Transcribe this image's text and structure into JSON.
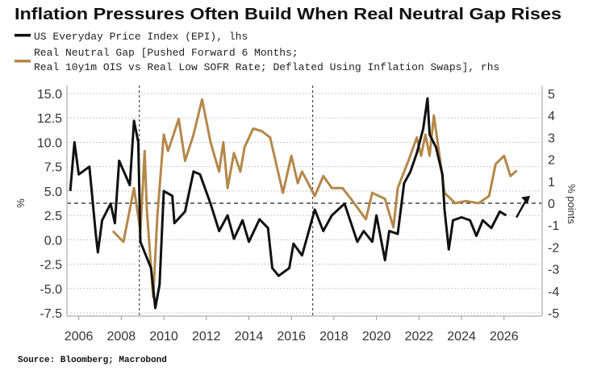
{
  "chart_data": {
    "type": "line",
    "title": "Inflation Pressures Often Build When Real Neutral Gap Rises",
    "legend": [
      {
        "label": "US Everyday Price Index (EPI), lhs",
        "color": "#111111"
      },
      {
        "label_line1": "Real Neutral Gap [Pushed Forward 6 Months;",
        "label_line2": "Real 10y1m OIS vs Real Low SOFR Rate; Deflated Using Inflation Swaps], rhs",
        "color": "#b5874a"
      }
    ],
    "legend_placement": "top-left",
    "ylabel_left": "%",
    "ylabel_right": "% points",
    "source": "Source: Bloomberg; Macrobond",
    "xlim": [
      2005.35,
      2027.7
    ],
    "ylim_left": [
      -7.5,
      15.0
    ],
    "ylim_right": [
      -5,
      5
    ],
    "x_ticks": [
      "2006",
      "2008",
      "2010",
      "2012",
      "2014",
      "2016",
      "2018",
      "2020",
      "2022",
      "2024",
      "2026"
    ],
    "y_ticks_left": [
      "15.0",
      "12.5",
      "10.0",
      "7.5",
      "5.0",
      "2.5",
      "0.0",
      "-2.5",
      "-5.0",
      "-7.5"
    ],
    "y_ticks_right": [
      "5",
      "4",
      "3",
      "2",
      "1",
      "0",
      "-1",
      "-2",
      "-3",
      "-4",
      "-5"
    ],
    "grid": true,
    "zero_line_right": 0,
    "vlines": [
      2008.85,
      2017.0
    ],
    "arrow": {
      "from": [
        2026.58,
        -0.65
      ],
      "to": [
        2027.22,
        0.34
      ]
    },
    "series": [
      {
        "name": "US Everyday Price Index (EPI), lhs",
        "axis": "left",
        "color": "#111111",
        "x": [
          2005.6,
          2005.8,
          2006.0,
          2006.5,
          2006.8,
          2006.9,
          2007.1,
          2007.5,
          2007.7,
          2007.9,
          2008.4,
          2008.6,
          2008.8,
          2008.9,
          2009.4,
          2009.6,
          2009.8,
          2010.0,
          2010.4,
          2010.5,
          2011.0,
          2011.4,
          2011.7,
          2012.2,
          2012.6,
          2013.0,
          2013.3,
          2013.7,
          2014.0,
          2014.5,
          2014.9,
          2015.1,
          2015.4,
          2015.9,
          2016.1,
          2016.5,
          2017.1,
          2017.5,
          2017.9,
          2018.5,
          2019.1,
          2019.4,
          2019.8,
          2020.0,
          2020.4,
          2020.6,
          2021.0,
          2021.3,
          2021.6,
          2021.9,
          2022.2,
          2022.4,
          2022.5,
          2022.8,
          2023.1,
          2023.2,
          2023.4,
          2023.6,
          2024.0,
          2024.4,
          2024.7,
          2025.0,
          2025.4,
          2025.8,
          2026.1
        ],
        "y": [
          5.0,
          10.0,
          6.7,
          7.5,
          0.6,
          -1.3,
          2.0,
          3.7,
          1.7,
          8.1,
          5.6,
          12.2,
          10.0,
          -0.2,
          -2.9,
          -7.0,
          -4.6,
          5.0,
          4.5,
          1.7,
          2.9,
          7.0,
          6.7,
          3.7,
          0.9,
          2.5,
          0.1,
          2.0,
          -0.2,
          2.1,
          1.2,
          -2.9,
          -3.7,
          -2.9,
          -0.4,
          -1.6,
          3.1,
          0.9,
          2.5,
          3.7,
          -0.2,
          0.9,
          -0.2,
          2.5,
          -2.1,
          0.9,
          0.6,
          5.8,
          7.0,
          8.9,
          11.4,
          14.5,
          10.8,
          9.5,
          6.7,
          3.1,
          -1.0,
          2.0,
          2.3,
          2.0,
          0.4,
          2.0,
          1.2,
          2.9,
          2.5
        ]
      },
      {
        "name": "Real Neutral Gap, rhs",
        "axis": "right",
        "color": "#b5874a",
        "x": [
          2007.6,
          2008.1,
          2008.6,
          2008.9,
          2009.1,
          2009.2,
          2009.5,
          2009.7,
          2010.0,
          2010.2,
          2010.7,
          2011.0,
          2011.4,
          2011.8,
          2012.2,
          2012.6,
          2012.8,
          2013.0,
          2013.3,
          2013.6,
          2013.8,
          2014.2,
          2014.6,
          2015.0,
          2015.6,
          2016.0,
          2016.3,
          2016.5,
          2017.1,
          2017.5,
          2017.9,
          2018.4,
          2018.8,
          2019.5,
          2019.8,
          2020.4,
          2020.8,
          2021.0,
          2021.5,
          2021.9,
          2022.1,
          2022.3,
          2022.5,
          2022.7,
          2023.0,
          2023.2,
          2023.7,
          2024.2,
          2024.8,
          2025.3,
          2025.6,
          2026.0,
          2026.3,
          2026.6
        ],
        "y": [
          -1.27,
          -1.76,
          0.69,
          -1.27,
          2.38,
          -0.29,
          -4.29,
          -0.56,
          3.13,
          2.38,
          3.84,
          1.93,
          3.13,
          4.73,
          2.78,
          1.44,
          2.78,
          0.69,
          2.29,
          1.44,
          2.56,
          3.4,
          3.29,
          3.0,
          0.47,
          2.16,
          0.91,
          1.44,
          0.33,
          1.24,
          0.69,
          0.69,
          0.2,
          -0.73,
          0.47,
          0.2,
          -1.1,
          0.69,
          1.93,
          3.0,
          2.16,
          3.13,
          2.16,
          4.0,
          1.93,
          0.47,
          0.0,
          0.1,
          0.0,
          0.33,
          1.78,
          2.16,
          1.24,
          1.49
        ]
      }
    ]
  }
}
